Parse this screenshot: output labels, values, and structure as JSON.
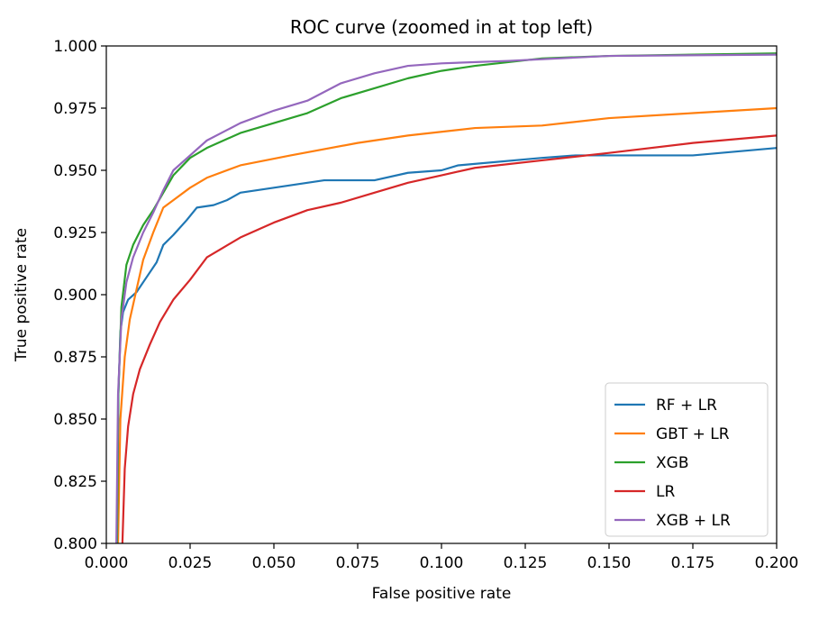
{
  "chart_data": {
    "type": "line",
    "title": "ROC curve (zoomed in at top left)",
    "xlabel": "False positive rate",
    "ylabel": "True positive rate",
    "xlim": [
      0.0,
      0.2
    ],
    "ylim": [
      0.8,
      1.0
    ],
    "xticks": [
      "0.000",
      "0.025",
      "0.050",
      "0.075",
      "0.100",
      "0.125",
      "0.150",
      "0.175",
      "0.200"
    ],
    "yticks": [
      "0.800",
      "0.825",
      "0.850",
      "0.875",
      "0.900",
      "0.925",
      "0.950",
      "0.975",
      "1.000"
    ],
    "grid": false,
    "legend_position": "bottom-right",
    "series": [
      {
        "name": "RF + LR",
        "color": "#1f77b4",
        "points": [
          [
            0.0032,
            0.8
          ],
          [
            0.0036,
            0.86
          ],
          [
            0.0042,
            0.885
          ],
          [
            0.005,
            0.893
          ],
          [
            0.0065,
            0.898
          ],
          [
            0.009,
            0.901
          ],
          [
            0.012,
            0.907
          ],
          [
            0.015,
            0.913
          ],
          [
            0.017,
            0.92
          ],
          [
            0.02,
            0.924
          ],
          [
            0.024,
            0.93
          ],
          [
            0.027,
            0.935
          ],
          [
            0.032,
            0.936
          ],
          [
            0.036,
            0.938
          ],
          [
            0.04,
            0.941
          ],
          [
            0.05,
            0.943
          ],
          [
            0.065,
            0.946
          ],
          [
            0.08,
            0.946
          ],
          [
            0.09,
            0.949
          ],
          [
            0.1,
            0.95
          ],
          [
            0.105,
            0.952
          ],
          [
            0.13,
            0.955
          ],
          [
            0.14,
            0.956
          ],
          [
            0.175,
            0.956
          ],
          [
            0.2,
            0.959
          ]
        ]
      },
      {
        "name": "GBT + LR",
        "color": "#ff7f0e",
        "points": [
          [
            0.0035,
            0.8
          ],
          [
            0.0042,
            0.85
          ],
          [
            0.0055,
            0.875
          ],
          [
            0.007,
            0.89
          ],
          [
            0.009,
            0.902
          ],
          [
            0.011,
            0.914
          ],
          [
            0.014,
            0.925
          ],
          [
            0.017,
            0.935
          ],
          [
            0.02,
            0.938
          ],
          [
            0.025,
            0.943
          ],
          [
            0.03,
            0.947
          ],
          [
            0.04,
            0.952
          ],
          [
            0.055,
            0.956
          ],
          [
            0.075,
            0.961
          ],
          [
            0.09,
            0.964
          ],
          [
            0.11,
            0.967
          ],
          [
            0.13,
            0.968
          ],
          [
            0.15,
            0.971
          ],
          [
            0.175,
            0.973
          ],
          [
            0.2,
            0.975
          ]
        ]
      },
      {
        "name": "XGB",
        "color": "#2ca02c",
        "points": [
          [
            0.0032,
            0.8
          ],
          [
            0.0036,
            0.86
          ],
          [
            0.0045,
            0.895
          ],
          [
            0.006,
            0.912
          ],
          [
            0.008,
            0.92
          ],
          [
            0.011,
            0.928
          ],
          [
            0.014,
            0.934
          ],
          [
            0.017,
            0.941
          ],
          [
            0.02,
            0.948
          ],
          [
            0.025,
            0.955
          ],
          [
            0.03,
            0.959
          ],
          [
            0.04,
            0.965
          ],
          [
            0.05,
            0.969
          ],
          [
            0.06,
            0.973
          ],
          [
            0.07,
            0.979
          ],
          [
            0.08,
            0.983
          ],
          [
            0.09,
            0.987
          ],
          [
            0.1,
            0.99
          ],
          [
            0.11,
            0.992
          ],
          [
            0.13,
            0.995
          ],
          [
            0.15,
            0.996
          ],
          [
            0.2,
            0.997
          ]
        ]
      },
      {
        "name": "LR",
        "color": "#d62728",
        "points": [
          [
            0.0048,
            0.8
          ],
          [
            0.0055,
            0.83
          ],
          [
            0.0065,
            0.847
          ],
          [
            0.008,
            0.86
          ],
          [
            0.01,
            0.87
          ],
          [
            0.013,
            0.88
          ],
          [
            0.016,
            0.889
          ],
          [
            0.02,
            0.898
          ],
          [
            0.025,
            0.906
          ],
          [
            0.03,
            0.915
          ],
          [
            0.035,
            0.919
          ],
          [
            0.04,
            0.923
          ],
          [
            0.05,
            0.929
          ],
          [
            0.06,
            0.934
          ],
          [
            0.07,
            0.937
          ],
          [
            0.08,
            0.941
          ],
          [
            0.09,
            0.945
          ],
          [
            0.1,
            0.948
          ],
          [
            0.11,
            0.951
          ],
          [
            0.13,
            0.954
          ],
          [
            0.15,
            0.957
          ],
          [
            0.175,
            0.961
          ],
          [
            0.2,
            0.964
          ]
        ]
      },
      {
        "name": "XGB + LR",
        "color": "#9467bd",
        "points": [
          [
            0.003,
            0.8
          ],
          [
            0.0035,
            0.86
          ],
          [
            0.0045,
            0.89
          ],
          [
            0.006,
            0.905
          ],
          [
            0.008,
            0.915
          ],
          [
            0.011,
            0.925
          ],
          [
            0.014,
            0.933
          ],
          [
            0.017,
            0.942
          ],
          [
            0.02,
            0.95
          ],
          [
            0.025,
            0.956
          ],
          [
            0.03,
            0.962
          ],
          [
            0.04,
            0.969
          ],
          [
            0.05,
            0.974
          ],
          [
            0.06,
            0.978
          ],
          [
            0.07,
            0.985
          ],
          [
            0.08,
            0.989
          ],
          [
            0.09,
            0.992
          ],
          [
            0.1,
            0.993
          ],
          [
            0.12,
            0.994
          ],
          [
            0.15,
            0.996
          ],
          [
            0.2,
            0.9965
          ]
        ]
      }
    ]
  }
}
